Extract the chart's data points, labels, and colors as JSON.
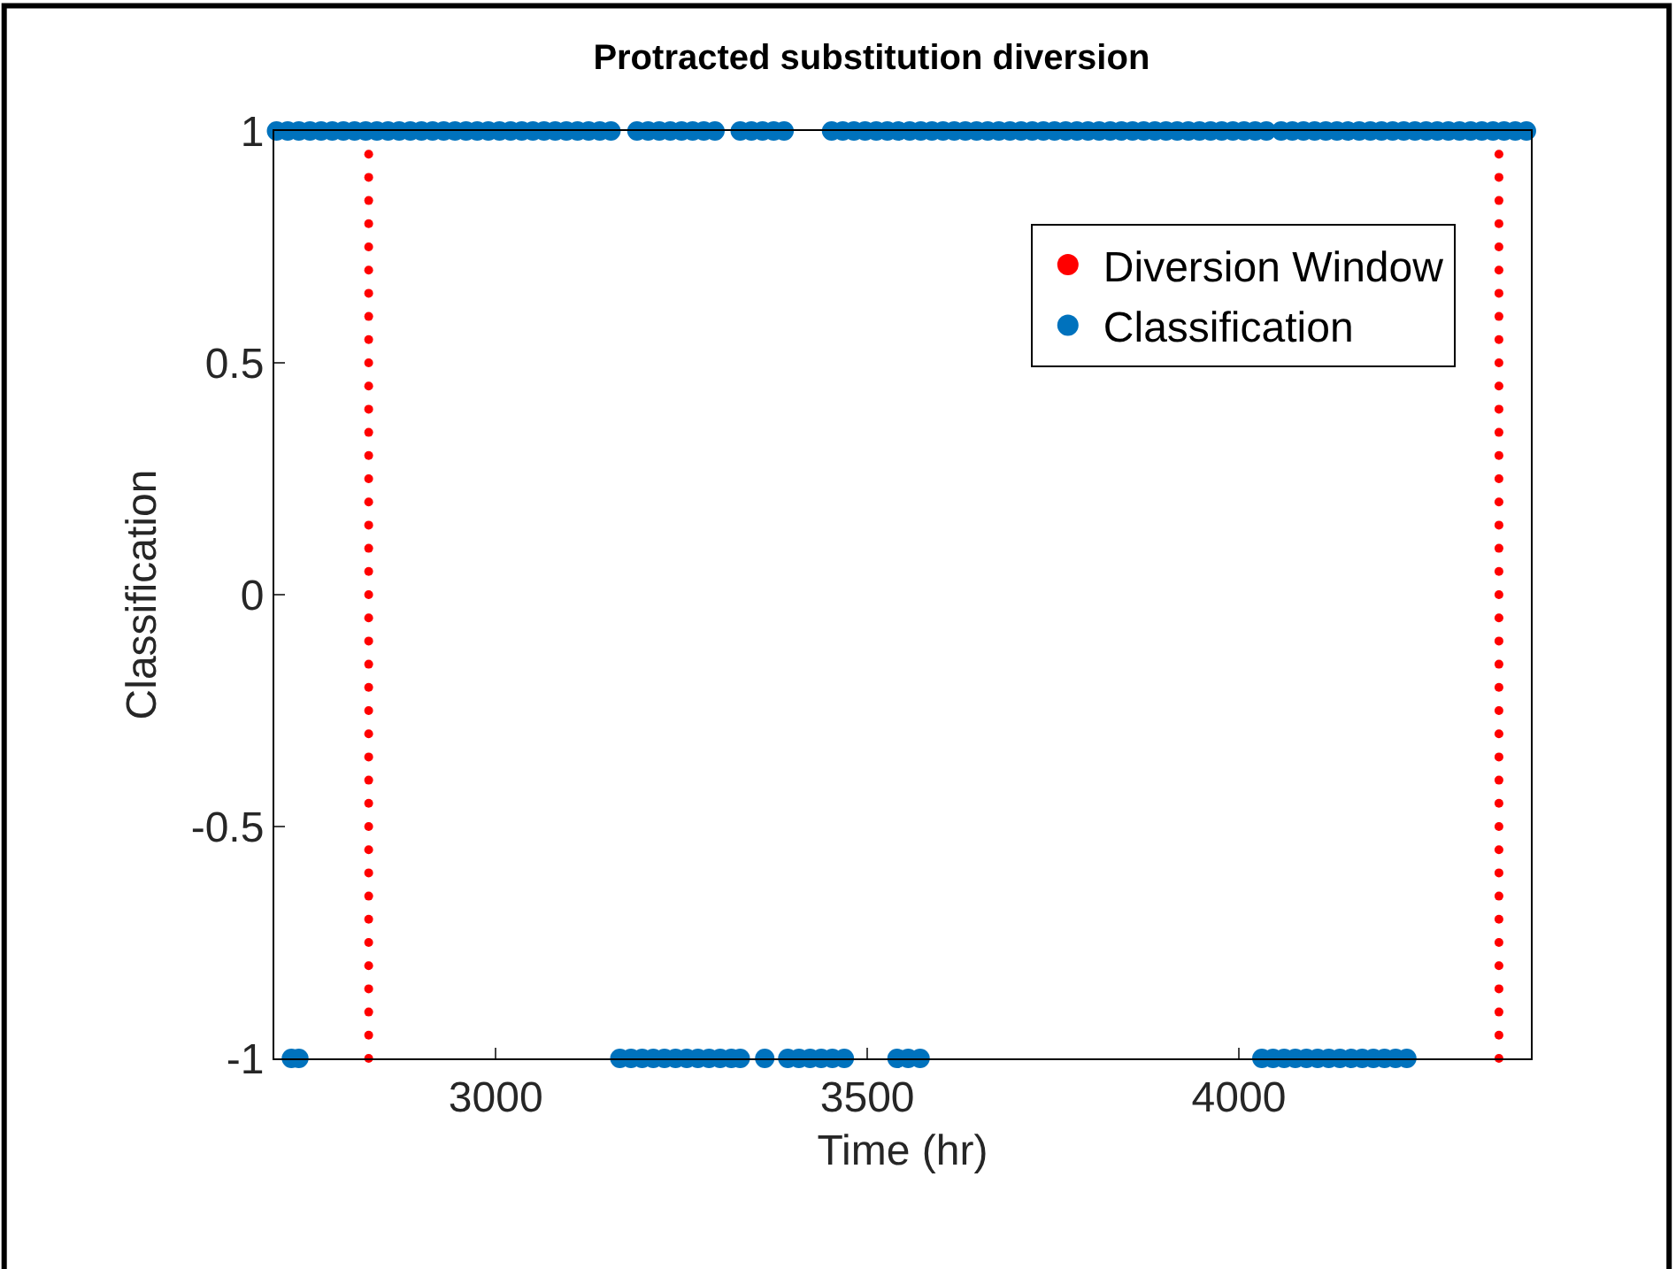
{
  "chart_data": {
    "type": "scatter",
    "title": "Protracted substitution diversion",
    "xlabel": "Time (hr)",
    "ylabel": "Classification",
    "xlim": [
      2702,
      4393
    ],
    "xticks": [
      3000,
      3500,
      4000
    ],
    "ylim": [
      -1,
      1
    ],
    "yticks": [
      -1,
      -0.5,
      0,
      0.5,
      1
    ],
    "legend": "top right",
    "marker": "circle",
    "series": [
      {
        "name": "Diversion Window",
        "color": "#ff0000",
        "x": [
          2829,
          2829,
          2829,
          2829,
          2829,
          2829,
          2829,
          2829,
          2829,
          2829,
          2829,
          2829,
          2829,
          2829,
          2829,
          2829,
          2829,
          2829,
          2829,
          2829,
          2829,
          2829,
          2829,
          2829,
          2829,
          2829,
          2829,
          2829,
          2829,
          2829,
          2829,
          2829,
          2829,
          2829,
          2829,
          2829,
          2829,
          2829,
          2829,
          2829,
          4350,
          4350,
          4350,
          4350,
          4350,
          4350,
          4350,
          4350,
          4350,
          4350,
          4350,
          4350,
          4350,
          4350,
          4350,
          4350,
          4350,
          4350,
          4350,
          4350,
          4350,
          4350,
          4350,
          4350,
          4350,
          4350,
          4350,
          4350,
          4350,
          4350,
          4350,
          4350,
          4350,
          4350,
          4350,
          4350,
          4350,
          4350,
          4350,
          4350
        ],
        "values": [
          -1,
          -0.95,
          -0.9,
          -0.85,
          -0.8,
          -0.75,
          -0.7,
          -0.65,
          -0.6,
          -0.55,
          -0.5,
          -0.45,
          -0.4,
          -0.35,
          -0.3,
          -0.25,
          -0.2,
          -0.15,
          -0.1,
          -0.05,
          0,
          0.05,
          0.1,
          0.15,
          0.2,
          0.25,
          0.3,
          0.35,
          0.4,
          0.45,
          0.5,
          0.55,
          0.6,
          0.65,
          0.7,
          0.75,
          0.8,
          0.85,
          0.9,
          0.95,
          -1,
          -0.95,
          -0.9,
          -0.85,
          -0.8,
          -0.75,
          -0.7,
          -0.65,
          -0.6,
          -0.55,
          -0.5,
          -0.45,
          -0.4,
          -0.35,
          -0.3,
          -0.25,
          -0.2,
          -0.15,
          -0.1,
          -0.05,
          0,
          0.05,
          0.1,
          0.15,
          0.2,
          0.25,
          0.3,
          0.35,
          0.4,
          0.45,
          0.5,
          0.55,
          0.6,
          0.65,
          0.7,
          0.75,
          0.8,
          0.85,
          0.9,
          0.95
        ]
      },
      {
        "name": "Classification",
        "color": "#0072bd",
        "x": [
          2705,
          2720,
          2735,
          2750,
          2765,
          2780,
          2795,
          2810,
          2825,
          2840,
          2855,
          2870,
          2885,
          2900,
          2915,
          2930,
          2945,
          2960,
          2975,
          2990,
          3005,
          3020,
          3035,
          3050,
          3065,
          3080,
          3095,
          3110,
          3125,
          3140,
          3155,
          3190,
          3205,
          3220,
          3235,
          3250,
          3265,
          3280,
          3295,
          3329,
          3344,
          3359,
          3374,
          3388,
          3452,
          3467,
          3482,
          3497,
          3512,
          3527,
          3542,
          3557,
          3572,
          3587,
          3602,
          3617,
          3632,
          3647,
          3662,
          3677,
          3692,
          3707,
          3722,
          3737,
          3752,
          3767,
          3782,
          3797,
          3812,
          3827,
          3842,
          3857,
          3872,
          3887,
          3902,
          3917,
          3932,
          3947,
          3962,
          3977,
          3992,
          4007,
          4022,
          4037,
          4057,
          4072,
          4087,
          4102,
          4117,
          4132,
          4147,
          4162,
          4177,
          4192,
          4207,
          4222,
          4237,
          4252,
          4267,
          4282,
          4297,
          4312,
          4327,
          4342,
          4357,
          4372,
          4387,
          2725,
          2735,
          3167,
          3182,
          3197,
          3212,
          3227,
          3242,
          3257,
          3272,
          3287,
          3302,
          3317,
          3329,
          3362,
          3393,
          3408,
          3423,
          3438,
          3453,
          3469,
          3540,
          3555,
          3571,
          4031,
          4046,
          4061,
          4076,
          4091,
          4106,
          4121,
          4136,
          4151,
          4166,
          4181,
          4196,
          4211,
          4226
        ],
        "values": [
          1,
          1,
          1,
          1,
          1,
          1,
          1,
          1,
          1,
          1,
          1,
          1,
          1,
          1,
          1,
          1,
          1,
          1,
          1,
          1,
          1,
          1,
          1,
          1,
          1,
          1,
          1,
          1,
          1,
          1,
          1,
          1,
          1,
          1,
          1,
          1,
          1,
          1,
          1,
          1,
          1,
          1,
          1,
          1,
          1,
          1,
          1,
          1,
          1,
          1,
          1,
          1,
          1,
          1,
          1,
          1,
          1,
          1,
          1,
          1,
          1,
          1,
          1,
          1,
          1,
          1,
          1,
          1,
          1,
          1,
          1,
          1,
          1,
          1,
          1,
          1,
          1,
          1,
          1,
          1,
          1,
          1,
          1,
          1,
          1,
          1,
          1,
          1,
          1,
          1,
          1,
          1,
          1,
          1,
          1,
          1,
          1,
          1,
          1,
          1,
          1,
          1,
          1,
          1,
          1,
          1,
          1,
          -1,
          -1,
          -1,
          -1,
          -1,
          -1,
          -1,
          -1,
          -1,
          -1,
          -1,
          -1,
          -1,
          -1,
          -1,
          -1,
          -1,
          -1,
          -1,
          -1,
          -1,
          -1,
          -1,
          -1,
          -1,
          -1,
          -1,
          -1,
          -1,
          -1,
          -1,
          -1,
          -1,
          -1,
          -1,
          -1,
          -1,
          -1
        ]
      }
    ]
  }
}
